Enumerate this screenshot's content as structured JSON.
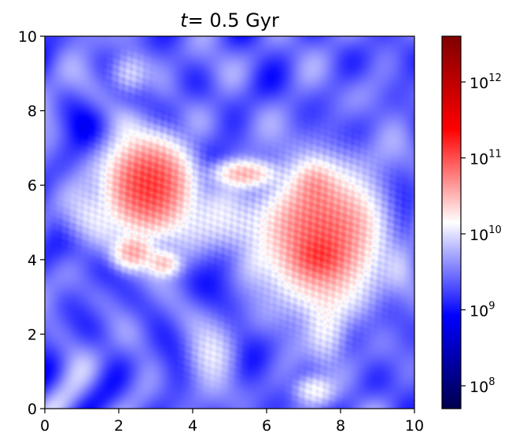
{
  "chart_data": {
    "type": "heatmap",
    "title": {
      "var": "t",
      "eq": "= ",
      "value": "0.5 Gyr"
    },
    "xlabel": "",
    "ylabel": "",
    "xlim": [
      0,
      10
    ],
    "ylim": [
      0,
      10
    ],
    "x_ticks": [
      0,
      2,
      4,
      6,
      8,
      10
    ],
    "y_ticks": [
      0,
      2,
      4,
      6,
      8,
      10
    ],
    "x_tick_labels": [
      "0",
      "2",
      "4",
      "6",
      "8",
      "10"
    ],
    "y_tick_labels": [
      "0",
      "2",
      "4",
      "6",
      "8",
      "10"
    ],
    "grid": false,
    "colormap": "seismic",
    "colormap_stops": [
      "#00004d",
      "#0000ff",
      "#ffffff",
      "#ff0000",
      "#800000"
    ],
    "color_scale": "log",
    "color_range": [
      50000000.0,
      4000000000000.0
    ],
    "colorbar": {
      "position": "right",
      "ticks": [
        {
          "value": 100000000.0,
          "base": "10",
          "exp": "8"
        },
        {
          "value": 1000000000.0,
          "base": "10",
          "exp": "9"
        },
        {
          "value": 10000000000.0,
          "base": "10",
          "exp": "10"
        },
        {
          "value": 100000000000.0,
          "base": "10",
          "exp": "11"
        },
        {
          "value": 1000000000000.0,
          "base": "10",
          "exp": "12"
        }
      ]
    },
    "background_level": 2500000000.0,
    "features": [
      {
        "x": 2.8,
        "y": 6.0,
        "sx": 0.55,
        "sy": 0.6,
        "peak": 120000000000.0
      },
      {
        "x": 2.4,
        "y": 4.2,
        "sx": 0.3,
        "sy": 0.25,
        "peak": 35000000000.0
      },
      {
        "x": 3.2,
        "y": 3.9,
        "sx": 0.25,
        "sy": 0.2,
        "peak": 25000000000.0
      },
      {
        "x": 5.4,
        "y": 6.3,
        "sx": 0.45,
        "sy": 0.2,
        "peak": 30000000000.0
      },
      {
        "x": 7.5,
        "y": 4.6,
        "sx": 0.75,
        "sy": 0.9,
        "peak": 80000000000.0
      },
      {
        "x": 7.3,
        "y": 6.0,
        "sx": 0.3,
        "sy": 0.35,
        "peak": 25000000000.0
      },
      {
        "x": 7.4,
        "y": 4.1,
        "sx": 0.35,
        "sy": 0.3,
        "peak": 60000000000.0
      },
      {
        "x": 5.0,
        "y": 5.0,
        "sx": 1.6,
        "sy": 0.45,
        "peak": 10000000000.0
      },
      {
        "x": 2.3,
        "y": 9.0,
        "sx": 0.3,
        "sy": 0.3,
        "peak": 9000000000.0
      },
      {
        "x": 7.3,
        "y": 0.5,
        "sx": 0.3,
        "sy": 0.22,
        "peak": 13000000000.0
      },
      {
        "x": 7.6,
        "y": 2.2,
        "sx": 0.3,
        "sy": 0.6,
        "peak": 11000000000.0
      },
      {
        "x": 4.5,
        "y": 1.5,
        "sx": 0.35,
        "sy": 0.45,
        "peak": 9000000000.0
      },
      {
        "x": 1.2,
        "y": 5.2,
        "sx": 0.4,
        "sy": 0.4,
        "peak": 8000000000.0
      }
    ]
  }
}
